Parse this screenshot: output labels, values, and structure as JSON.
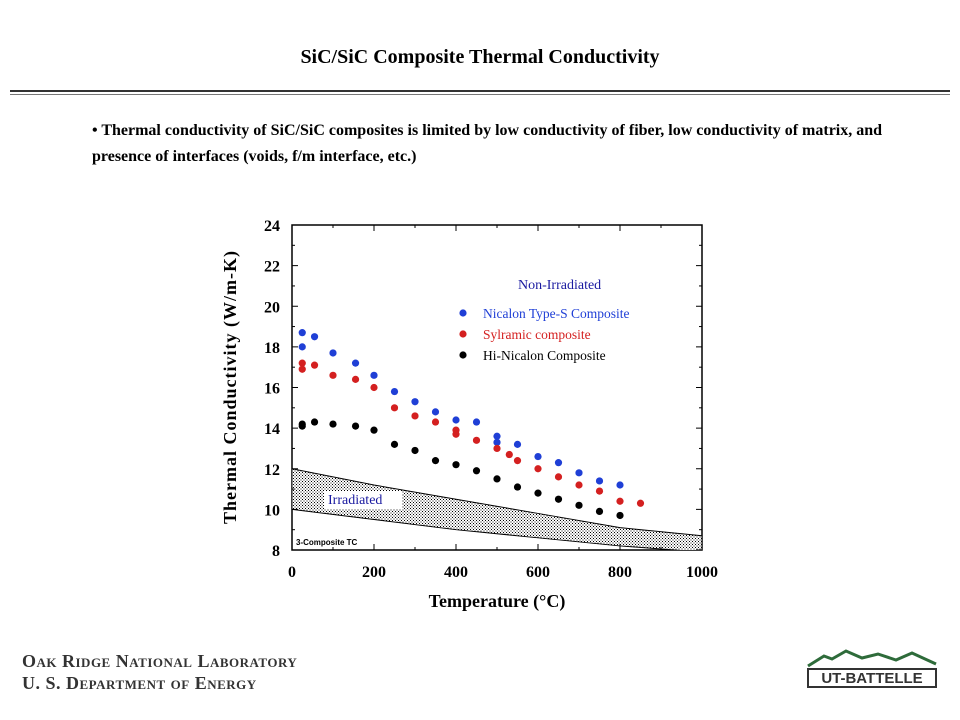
{
  "slide": {
    "title": "SiC/SiC Composite Thermal Conductivity",
    "bullet": "• Thermal conductivity of SiC/SiC composites is limited by low conductivity of fiber, low conductivity of matrix, and presence of interfaces (voids, f/m interface, etc.)"
  },
  "footer": {
    "lab_line1": "Oak Ridge National Laboratory",
    "lab_line2": "U. S. Department of Energy",
    "logo_text": "UT-BATTELLE",
    "logo_color": "#2e6b3a"
  },
  "chart_data": {
    "type": "scatter",
    "xlabel": "Temperature (°C)",
    "ylabel": "Thermal Conductivity (W/m-K)",
    "xlim": [
      0,
      1000
    ],
    "ylim": [
      8,
      24
    ],
    "xticks": [
      0,
      200,
      400,
      600,
      800,
      1000
    ],
    "yticks": [
      8,
      10,
      12,
      14,
      16,
      18,
      20,
      22,
      24
    ],
    "legend_title": "Non-Irradiated",
    "legend_title_color": "#1a1aa0",
    "legend_position": "top-right",
    "series": [
      {
        "name": "Nicalon Type-S Composite",
        "color": "#1f3fd6",
        "points": [
          [
            25,
            18.7
          ],
          [
            25,
            18.0
          ],
          [
            55,
            18.5
          ],
          [
            100,
            17.7
          ],
          [
            155,
            17.2
          ],
          [
            200,
            16.6
          ],
          [
            250,
            15.8
          ],
          [
            300,
            15.3
          ],
          [
            350,
            14.8
          ],
          [
            400,
            14.4
          ],
          [
            450,
            14.3
          ],
          [
            500,
            13.6
          ],
          [
            500,
            13.3
          ],
          [
            550,
            13.2
          ],
          [
            600,
            12.6
          ],
          [
            650,
            12.3
          ],
          [
            700,
            11.8
          ],
          [
            750,
            11.4
          ],
          [
            800,
            11.2
          ]
        ]
      },
      {
        "name": "Sylramic composite",
        "color": "#d42020",
        "points": [
          [
            25,
            17.2
          ],
          [
            25,
            16.9
          ],
          [
            55,
            17.1
          ],
          [
            100,
            16.6
          ],
          [
            155,
            16.4
          ],
          [
            200,
            16.0
          ],
          [
            250,
            15.0
          ],
          [
            300,
            14.6
          ],
          [
            350,
            14.3
          ],
          [
            400,
            13.9
          ],
          [
            400,
            13.7
          ],
          [
            450,
            13.4
          ],
          [
            500,
            13.0
          ],
          [
            530,
            12.7
          ],
          [
            550,
            12.4
          ],
          [
            600,
            12.0
          ],
          [
            650,
            11.6
          ],
          [
            700,
            11.2
          ],
          [
            750,
            10.9
          ],
          [
            800,
            10.4
          ],
          [
            850,
            10.3
          ]
        ]
      },
      {
        "name": "Hi-Nicalon Composite",
        "color": "#000000",
        "points": [
          [
            25,
            14.2
          ],
          [
            25,
            14.1
          ],
          [
            55,
            14.3
          ],
          [
            100,
            14.2
          ],
          [
            155,
            14.1
          ],
          [
            200,
            13.9
          ],
          [
            250,
            13.2
          ],
          [
            300,
            12.9
          ],
          [
            350,
            12.4
          ],
          [
            400,
            12.2
          ],
          [
            450,
            11.9
          ],
          [
            500,
            11.5
          ],
          [
            550,
            11.1
          ],
          [
            600,
            10.8
          ],
          [
            650,
            10.5
          ],
          [
            700,
            10.2
          ],
          [
            750,
            9.9
          ],
          [
            800,
            9.7
          ]
        ]
      }
    ],
    "band": {
      "label": "Irradiated",
      "label_color": "#1a1aa0",
      "upper": [
        [
          0,
          12.0
        ],
        [
          200,
          11.2
        ],
        [
          400,
          10.5
        ],
        [
          600,
          9.8
        ],
        [
          800,
          9.1
        ],
        [
          1000,
          8.7
        ]
      ],
      "lower": [
        [
          0,
          10.0
        ],
        [
          200,
          9.5
        ],
        [
          400,
          9.0
        ],
        [
          600,
          8.6
        ],
        [
          800,
          8.2
        ],
        [
          1000,
          7.9
        ]
      ]
    },
    "annotation": "3-Composite TC"
  }
}
